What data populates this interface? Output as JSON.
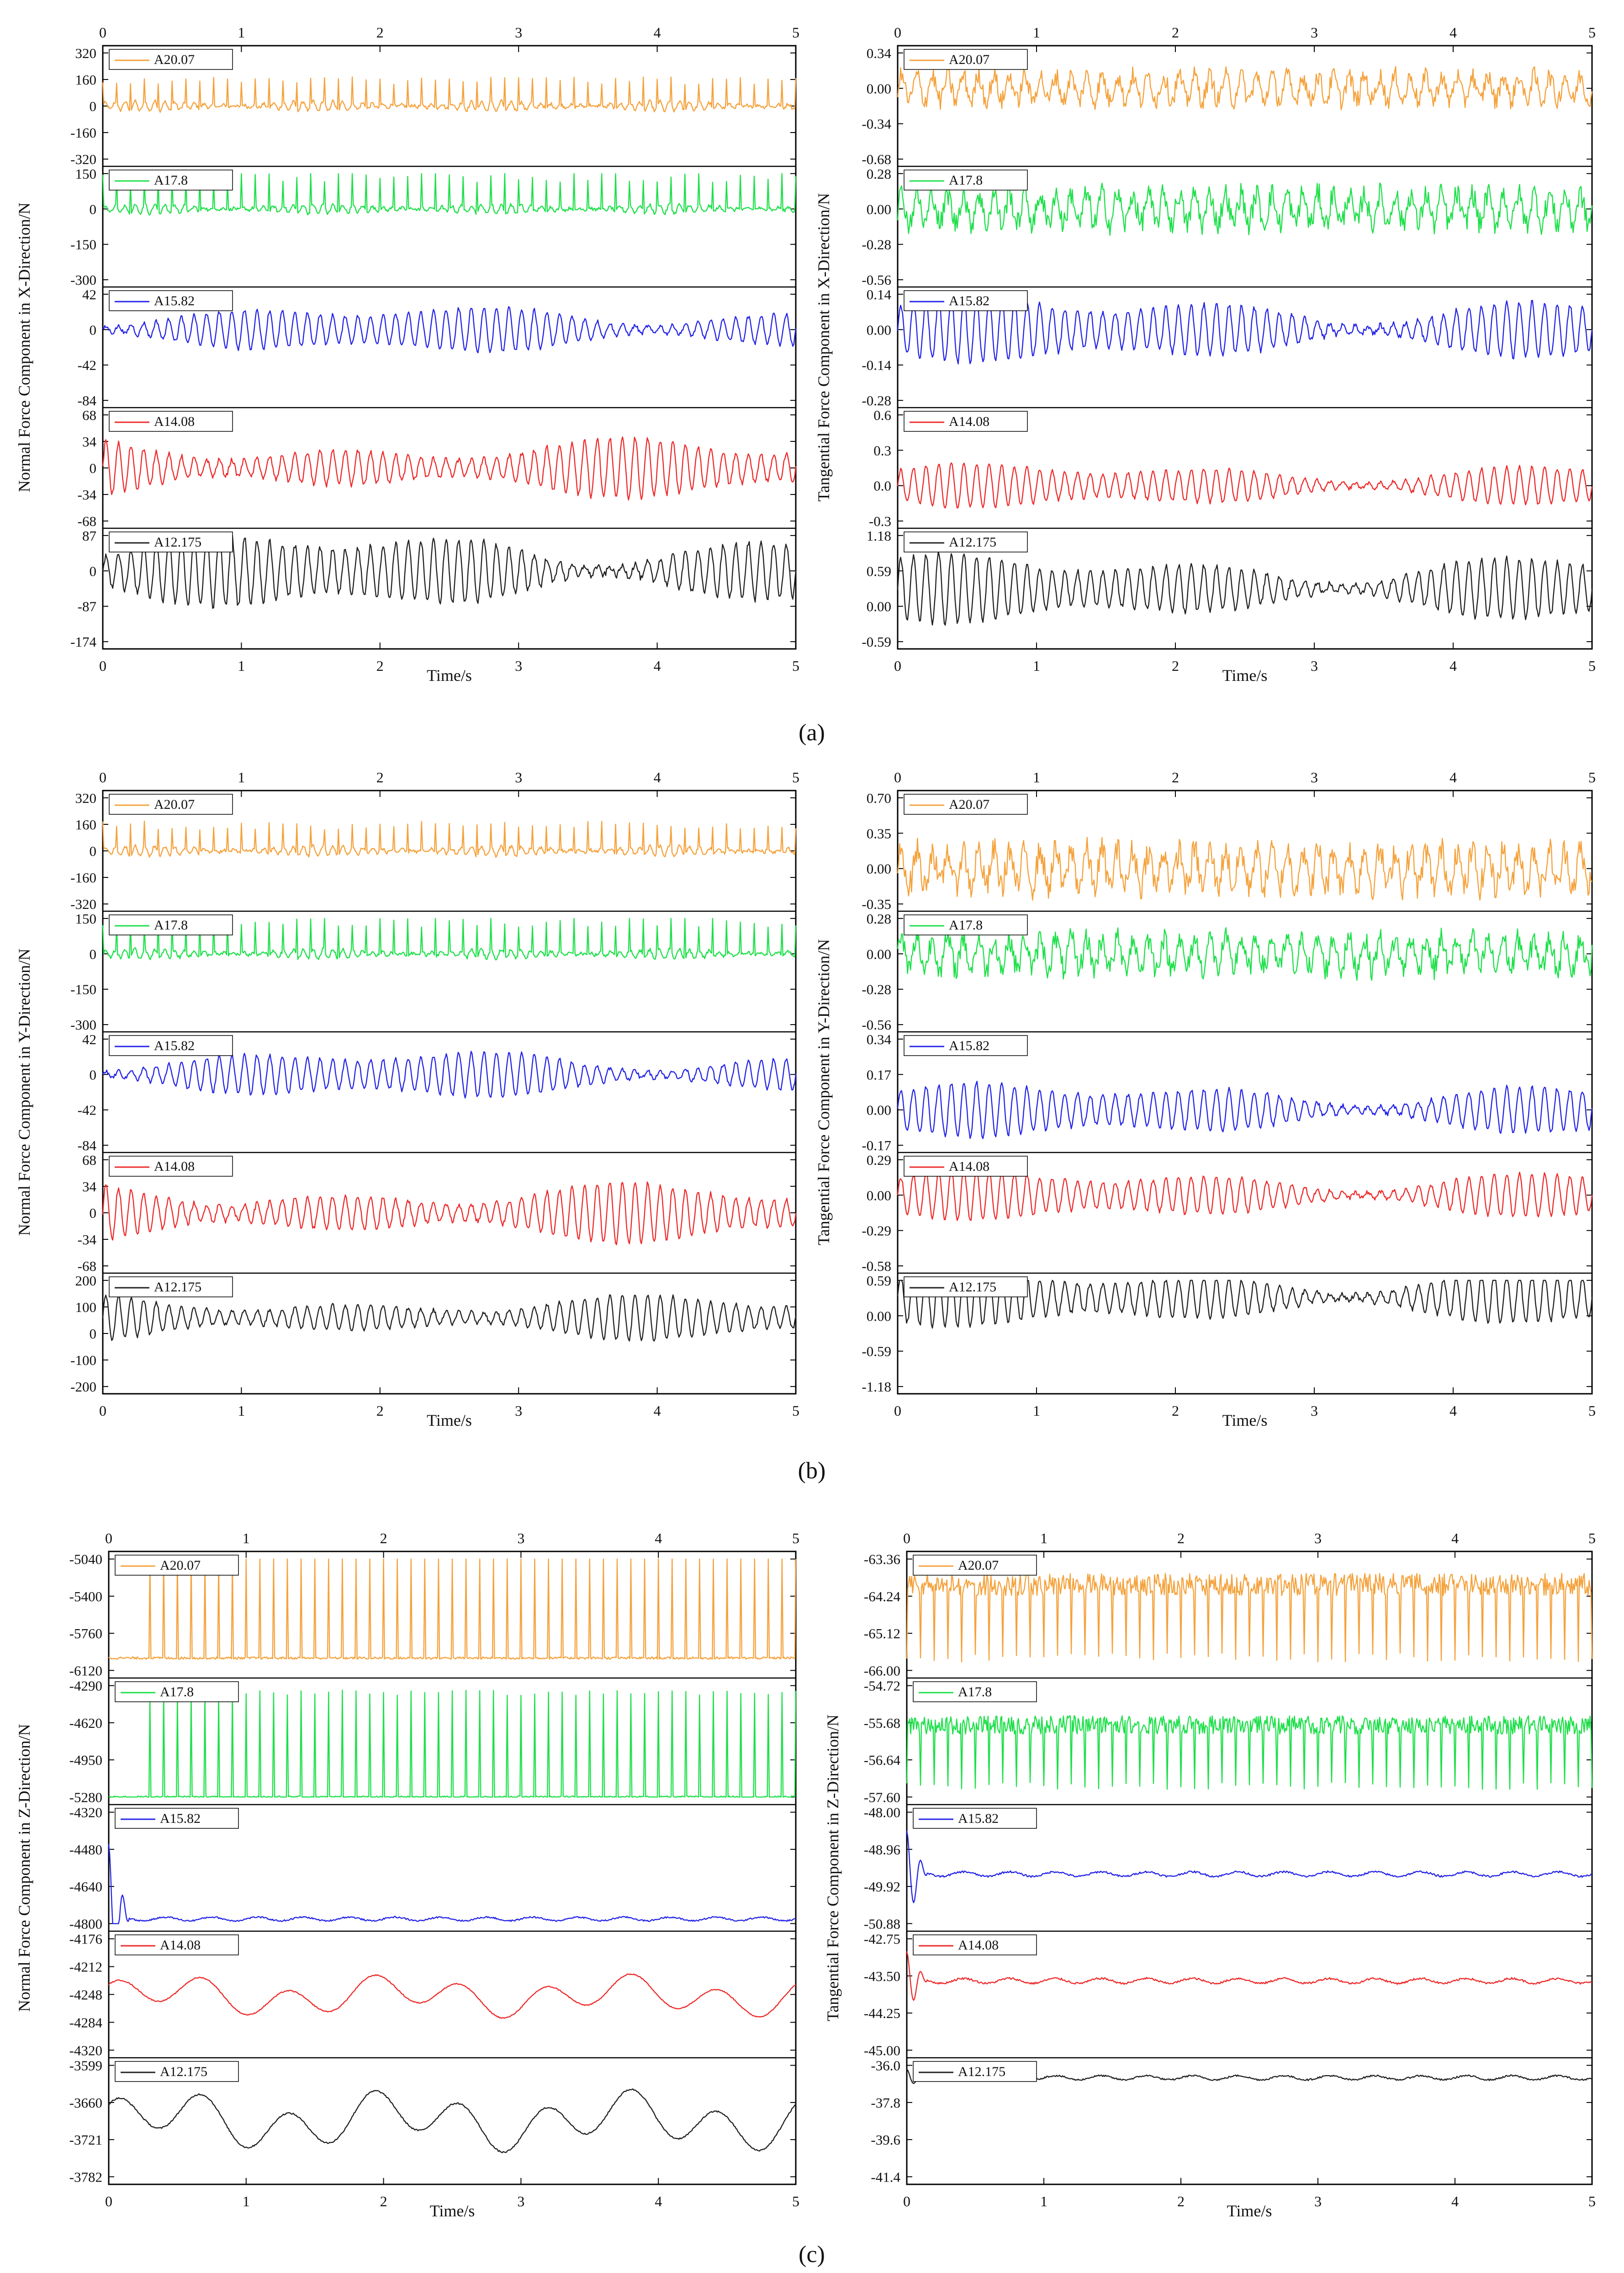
{
  "captions": [
    "(a)",
    "(b)",
    "(c)"
  ],
  "xlabel": "Time/s",
  "series_names": [
    "A20.07",
    "A17.8",
    "A15.82",
    "A14.08",
    "A12.175"
  ],
  "colors": {
    "A20.07": "#f5a23c",
    "A17.8": "#1ee04a",
    "A15.82": "#2424e8",
    "A14.08": "#ee2a2a",
    "A12.175": "#222222"
  },
  "chart_data": [
    {
      "id": "a-left",
      "type": "line",
      "ylabel": "Normal Force Component in X-Direction/N",
      "xlim": [
        0,
        5
      ],
      "xticks": [
        0,
        1,
        2,
        3,
        4,
        5
      ],
      "series": [
        {
          "name": "A20.07",
          "pattern": "spiky",
          "center": 0,
          "amp": 60,
          "spike": 180,
          "ylim": [
            -320,
            320
          ],
          "yticks": [
            320,
            160,
            0,
            -160,
            -320
          ]
        },
        {
          "name": "A17.8",
          "pattern": "spiky",
          "center": 0,
          "amp": 40,
          "spike": 160,
          "ylim": [
            -300,
            150
          ],
          "yticks": [
            150,
            0,
            -150,
            -300
          ]
        },
        {
          "name": "A15.82",
          "pattern": "oscillation",
          "center": 0,
          "amp": 30,
          "ylim": [
            -84,
            42
          ],
          "yticks": [
            42,
            0,
            -42,
            -84
          ]
        },
        {
          "name": "A14.08",
          "pattern": "oscillation",
          "center": 0,
          "amp": 40,
          "ylim": [
            -68,
            68
          ],
          "yticks": [
            68,
            34,
            0,
            -34,
            -68
          ]
        },
        {
          "name": "A12.175",
          "pattern": "oscillation",
          "center": 0,
          "amp": 100,
          "ylim": [
            -174,
            87
          ],
          "yticks": [
            87,
            0,
            -87,
            -174
          ]
        }
      ]
    },
    {
      "id": "a-right",
      "type": "line",
      "ylabel": "Tangential Force Component in X-Direction/N",
      "xlim": [
        0,
        5
      ],
      "xticks": [
        0,
        1,
        2,
        3,
        4,
        5
      ],
      "series": [
        {
          "name": "A20.07",
          "pattern": "noisy",
          "center": 0.0,
          "amp": 0.2,
          "ylim": [
            -0.68,
            0.34
          ],
          "yticks": [
            0.34,
            0.0,
            -0.34,
            -0.68
          ],
          "decimals": 2
        },
        {
          "name": "A17.8",
          "pattern": "noisy",
          "center": 0.0,
          "amp": 0.2,
          "ylim": [
            -0.56,
            0.28
          ],
          "yticks": [
            0.28,
            0.0,
            -0.28,
            -0.56
          ],
          "decimals": 2
        },
        {
          "name": "A15.82",
          "pattern": "oscillation",
          "center": 0.0,
          "amp": 0.14,
          "ylim": [
            -0.28,
            0.14
          ],
          "yticks": [
            0.14,
            0.0,
            -0.14,
            -0.28
          ],
          "decimals": 2
        },
        {
          "name": "A14.08",
          "pattern": "oscillation",
          "center": 0.0,
          "amp": 0.2,
          "ylim": [
            -0.3,
            0.6
          ],
          "yticks": [
            0.6,
            0.3,
            0.0,
            -0.3
          ],
          "decimals": 1
        },
        {
          "name": "A12.175",
          "pattern": "oscillation",
          "center": 0.3,
          "amp": 0.6,
          "ylim": [
            -0.59,
            1.18
          ],
          "yticks": [
            1.18,
            0.59,
            0.0,
            -0.59
          ],
          "decimals": 2
        }
      ]
    },
    {
      "id": "b-left",
      "type": "line",
      "ylabel": "Normal Force Component in Y-Direction/N",
      "xlim": [
        0,
        5
      ],
      "xticks": [
        0,
        1,
        2,
        3,
        4,
        5
      ],
      "series": [
        {
          "name": "A20.07",
          "pattern": "spiky",
          "center": 0,
          "amp": 60,
          "spike": 180,
          "ylim": [
            -320,
            320
          ],
          "yticks": [
            320,
            160,
            0,
            -160,
            -320
          ]
        },
        {
          "name": "A17.8",
          "pattern": "spiky",
          "center": 0,
          "amp": 40,
          "spike": 160,
          "ylim": [
            -300,
            150
          ],
          "yticks": [
            150,
            0,
            -150,
            -300
          ]
        },
        {
          "name": "A15.82",
          "pattern": "oscillation",
          "center": 0,
          "amp": 30,
          "ylim": [
            -84,
            42
          ],
          "yticks": [
            42,
            0,
            -42,
            -84
          ]
        },
        {
          "name": "A14.08",
          "pattern": "oscillation",
          "center": 0,
          "amp": 40,
          "ylim": [
            -68,
            68
          ],
          "yticks": [
            68,
            34,
            0,
            -34,
            -68
          ]
        },
        {
          "name": "A12.175",
          "pattern": "oscillation",
          "center": 60,
          "amp": 90,
          "ylim": [
            -200,
            200
          ],
          "yticks": [
            200,
            100,
            0,
            -100,
            -200
          ]
        }
      ]
    },
    {
      "id": "b-right",
      "type": "line",
      "ylabel": "Tangential Force Component in Y-Direction/N",
      "xlim": [
        0,
        5
      ],
      "xticks": [
        0,
        1,
        2,
        3,
        4,
        5
      ],
      "series": [
        {
          "name": "A20.07",
          "pattern": "noisy",
          "center": 0.0,
          "amp": 0.3,
          "ylim": [
            -0.35,
            0.7
          ],
          "yticks": [
            0.7,
            0.35,
            0.0,
            -0.35
          ],
          "decimals": 2
        },
        {
          "name": "A17.8",
          "pattern": "noisy",
          "center": 0.0,
          "amp": 0.2,
          "ylim": [
            -0.56,
            0.28
          ],
          "yticks": [
            0.28,
            0.0,
            -0.28,
            -0.56
          ],
          "decimals": 2
        },
        {
          "name": "A15.82",
          "pattern": "oscillation",
          "center": 0.0,
          "amp": 0.14,
          "ylim": [
            -0.17,
            0.34
          ],
          "yticks": [
            0.34,
            0.17,
            0.0,
            -0.17
          ],
          "decimals": 2
        },
        {
          "name": "A14.08",
          "pattern": "oscillation",
          "center": 0.0,
          "amp": 0.22,
          "ylim": [
            -0.58,
            0.29
          ],
          "yticks": [
            0.29,
            0.0,
            -0.29,
            -0.58
          ],
          "decimals": 2
        },
        {
          "name": "A12.175",
          "pattern": "oscillation",
          "center": 0.3,
          "amp": 0.5,
          "ylim": [
            -1.18,
            0.59
          ],
          "yticks": [
            0.59,
            0.0,
            -0.59,
            -1.18
          ],
          "decimals": 2
        }
      ]
    },
    {
      "id": "c-left",
      "type": "line",
      "ylabel": "Normal Force Component in Z-Direction/N",
      "xlim": [
        0,
        5
      ],
      "xticks": [
        0,
        1,
        2,
        3,
        4,
        5
      ],
      "series": [
        {
          "name": "A20.07",
          "pattern": "impulses",
          "base": -6000,
          "peak": -4900,
          "ylim": [
            -6120,
            -5040
          ],
          "yticks": [
            -5040,
            -5400,
            -5760,
            -6120
          ]
        },
        {
          "name": "A17.8",
          "pattern": "impulses",
          "base": -5280,
          "peak": -4330,
          "ylim": [
            -5280,
            -4290
          ],
          "yticks": [
            -4290,
            -4620,
            -4950,
            -5280
          ]
        },
        {
          "name": "A15.82",
          "pattern": "flat",
          "center": -4780,
          "amp": 8,
          "ylim": [
            -4800,
            -4320
          ],
          "yticks": [
            -4320,
            -4480,
            -4640,
            -4800
          ]
        },
        {
          "name": "A14.08",
          "pattern": "slow",
          "center": -4250,
          "amp": 22,
          "ylim": [
            -4320,
            -4176
          ],
          "yticks": [
            -4176,
            -4212,
            -4248,
            -4284,
            -4320
          ]
        },
        {
          "name": "A12.175",
          "pattern": "slow",
          "center": -3690,
          "amp": 40,
          "ylim": [
            -3782,
            -3599
          ],
          "yticks": [
            -3599,
            -3660,
            -3721,
            -3782
          ]
        }
      ]
    },
    {
      "id": "c-right",
      "type": "line",
      "ylabel": "Tangential Force Component in Z-Direction/N",
      "xlim": [
        0,
        5
      ],
      "xticks": [
        0,
        1,
        2,
        3,
        4,
        5
      ],
      "series": [
        {
          "name": "A20.07",
          "pattern": "dips",
          "base": -63.7,
          "trough": -65.8,
          "ylim": [
            -66.0,
            -63.36
          ],
          "yticks": [
            -63.36,
            -64.24,
            -65.12,
            -66.0
          ],
          "decimals": 2
        },
        {
          "name": "A17.8",
          "pattern": "dips",
          "base": -55.5,
          "trough": -57.4,
          "ylim": [
            -57.6,
            -54.72
          ],
          "yticks": [
            -54.72,
            -55.68,
            -56.64,
            -57.6
          ],
          "decimals": 2
        },
        {
          "name": "A15.82",
          "pattern": "flat",
          "center": -49.6,
          "amp": 0.06,
          "ylim": [
            -50.88,
            -48.0
          ],
          "yticks": [
            -48.0,
            -48.96,
            -49.92,
            -50.88
          ],
          "decimals": 2
        },
        {
          "name": "A14.08",
          "pattern": "flat",
          "center": -43.6,
          "amp": 0.05,
          "ylim": [
            -45.0,
            -42.75
          ],
          "yticks": [
            -42.75,
            -43.5,
            -44.25,
            -45.0
          ],
          "decimals": 2
        },
        {
          "name": "A12.175",
          "pattern": "flat",
          "center": -36.6,
          "amp": 0.1,
          "ylim": [
            -41.4,
            -36.0
          ],
          "yticks": [
            -36.0,
            -37.8,
            -39.6,
            -41.4
          ],
          "decimals": 1
        }
      ]
    }
  ]
}
